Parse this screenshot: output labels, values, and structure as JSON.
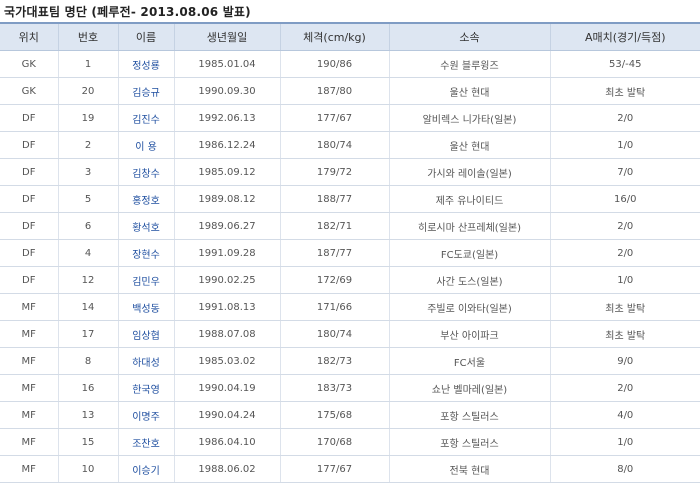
{
  "title": "국가대표팀 명단 (페루전- 2013.08.06 발표)",
  "headers": [
    "위치",
    "번호",
    "이름",
    "생년월일",
    "체격(cm/kg)",
    "소속",
    "A매치(경기/득점)"
  ],
  "players": [
    {
      "pos": "GK",
      "num": "1",
      "name": "정성룡",
      "birth": "1985.01.04",
      "body": "190/86",
      "club": "수원 블루윙즈",
      "caps": "53/-45"
    },
    {
      "pos": "GK",
      "num": "20",
      "name": "김승규",
      "birth": "1990.09.30",
      "body": "187/80",
      "club": "울산 현대",
      "caps": "최초 발탁"
    },
    {
      "pos": "DF",
      "num": "19",
      "name": "김진수",
      "birth": "1992.06.13",
      "body": "177/67",
      "club": "알비렉스 니가타(일본)",
      "caps": "2/0"
    },
    {
      "pos": "DF",
      "num": "2",
      "name": "이 용",
      "birth": "1986.12.24",
      "body": "180/74",
      "club": "울산 현대",
      "caps": "1/0"
    },
    {
      "pos": "DF",
      "num": "3",
      "name": "김창수",
      "birth": "1985.09.12",
      "body": "179/72",
      "club": "가시와 레이솔(일본)",
      "caps": "7/0"
    },
    {
      "pos": "DF",
      "num": "5",
      "name": "홍정호",
      "birth": "1989.08.12",
      "body": "188/77",
      "club": "제주 유나이티드",
      "caps": "16/0"
    },
    {
      "pos": "DF",
      "num": "6",
      "name": "황석호",
      "birth": "1989.06.27",
      "body": "182/71",
      "club": "히로시마 산프레체(일본)",
      "caps": "2/0"
    },
    {
      "pos": "DF",
      "num": "4",
      "name": "장현수",
      "birth": "1991.09.28",
      "body": "187/77",
      "club": "FC도쿄(일본)",
      "caps": "2/0"
    },
    {
      "pos": "DF",
      "num": "12",
      "name": "김민우",
      "birth": "1990.02.25",
      "body": "172/69",
      "club": "사간 도스(일본)",
      "caps": "1/0"
    },
    {
      "pos": "MF",
      "num": "14",
      "name": "백성동",
      "birth": "1991.08.13",
      "body": "171/66",
      "club": "주빌로 이와타(일본)",
      "caps": "최초 발탁"
    },
    {
      "pos": "MF",
      "num": "17",
      "name": "임상협",
      "birth": "1988.07.08",
      "body": "180/74",
      "club": "부산 아이파크",
      "caps": "최초 발탁"
    },
    {
      "pos": "MF",
      "num": "8",
      "name": "하대성",
      "birth": "1985.03.02",
      "body": "182/73",
      "club": "FC서울",
      "caps": "9/0"
    },
    {
      "pos": "MF",
      "num": "16",
      "name": "한국영",
      "birth": "1990.04.19",
      "body": "183/73",
      "club": "쇼난 벨마레(일본)",
      "caps": "2/0"
    },
    {
      "pos": "MF",
      "num": "13",
      "name": "이명주",
      "birth": "1990.04.24",
      "body": "175/68",
      "club": "포항 스틸러스",
      "caps": "4/0"
    },
    {
      "pos": "MF",
      "num": "15",
      "name": "조찬호",
      "birth": "1986.04.10",
      "body": "170/68",
      "club": "포항 스틸러스",
      "caps": "1/0"
    },
    {
      "pos": "MF",
      "num": "10",
      "name": "이승기",
      "birth": "1988.06.02",
      "body": "177/67",
      "club": "전북 현대",
      "caps": "8/0"
    }
  ]
}
